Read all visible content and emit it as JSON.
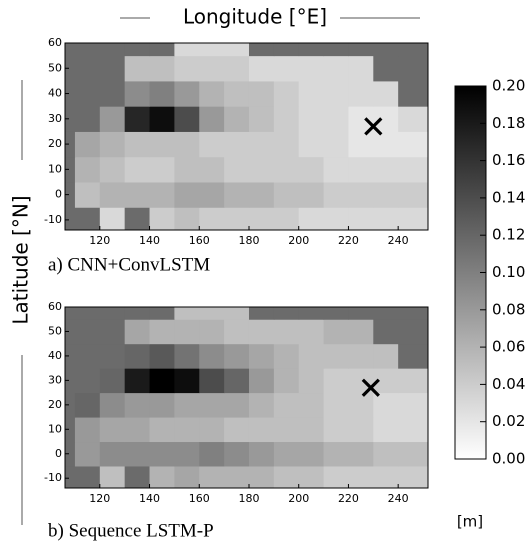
{
  "figure": {
    "xlabel": "Longitude [°E]",
    "ylabel": "Latitude [°N]",
    "colorbar": {
      "lim": [
        0,
        0.2
      ],
      "ticks": [
        {
          "value": 0,
          "label": "0.00"
        },
        {
          "value": 0.02,
          "label": "0.02"
        },
        {
          "value": 0.04,
          "label": "0.04"
        },
        {
          "value": 0.06,
          "label": "0.06"
        },
        {
          "value": 0.08,
          "label": "0.08"
        },
        {
          "value": 0.1,
          "label": "0.10"
        },
        {
          "value": 0.12,
          "label": "0.12"
        },
        {
          "value": 0.14,
          "label": "0.14"
        },
        {
          "value": 0.16,
          "label": "0.16"
        },
        {
          "value": 0.18,
          "label": "0.18"
        },
        {
          "value": 0.2,
          "label": "0.20"
        }
      ],
      "label": "[m]"
    }
  },
  "chart_data": [
    {
      "type": "heatmap",
      "title": "a) CNN+ConvLSTM",
      "xbins": [
        106,
        110,
        120,
        130,
        140,
        150,
        160,
        170,
        180,
        190,
        200,
        210,
        220,
        230,
        240,
        252
      ],
      "ybins": [
        -14,
        -5,
        5,
        15,
        25,
        35,
        45,
        55,
        60
      ],
      "xlim": [
        106,
        252
      ],
      "ylim": [
        -14,
        60
      ],
      "xticks": [
        120,
        140,
        160,
        180,
        200,
        220,
        240
      ],
      "yticks": [
        -10,
        0,
        10,
        20,
        30,
        40,
        50,
        60
      ],
      "marker": {
        "x": 230,
        "y": 27
      },
      "z": [
        [
          null,
          null,
          0.03,
          null,
          0.04,
          0.05,
          0.04,
          0.04,
          0.04,
          0.04,
          0.03,
          0.03,
          0.03,
          0.03,
          0.03
        ],
        [
          null,
          0.05,
          0.06,
          0.06,
          0.06,
          0.07,
          0.07,
          0.06,
          0.06,
          0.05,
          0.05,
          0.04,
          0.04,
          0.04,
          0.04
        ],
        [
          null,
          0.06,
          0.05,
          0.04,
          0.04,
          0.05,
          0.05,
          0.04,
          0.04,
          0.04,
          0.04,
          0.03,
          0.03,
          0.03,
          0.03
        ],
        [
          null,
          0.07,
          0.06,
          0.05,
          0.05,
          0.05,
          0.04,
          0.04,
          0.04,
          0.04,
          0.03,
          0.03,
          0.02,
          0.02,
          0.02
        ],
        [
          null,
          null,
          0.08,
          0.17,
          0.19,
          0.14,
          0.08,
          0.06,
          0.05,
          0.04,
          0.03,
          0.03,
          0.02,
          0.02,
          0.03
        ],
        [
          null,
          null,
          null,
          0.09,
          0.1,
          0.08,
          0.06,
          0.05,
          0.05,
          0.04,
          0.03,
          0.03,
          0.03,
          0.03,
          null
        ],
        [
          null,
          null,
          null,
          0.05,
          0.05,
          0.04,
          0.04,
          0.04,
          0.03,
          0.03,
          0.03,
          0.03,
          0.03,
          null,
          null
        ],
        [
          null,
          null,
          null,
          null,
          null,
          0.03,
          0.03,
          0.03,
          null,
          null,
          null,
          null,
          null,
          null,
          null
        ]
      ]
    },
    {
      "type": "heatmap",
      "title": "b) Sequence LSTM-P",
      "xbins": [
        106,
        110,
        120,
        130,
        140,
        150,
        160,
        170,
        180,
        190,
        200,
        210,
        220,
        230,
        240,
        252
      ],
      "ybins": [
        -14,
        -5,
        5,
        15,
        25,
        35,
        45,
        55,
        60
      ],
      "xlim": [
        106,
        252
      ],
      "ylim": [
        -14,
        60
      ],
      "xticks": [
        120,
        140,
        160,
        180,
        200,
        220,
        240
      ],
      "yticks": [
        -10,
        0,
        10,
        20,
        30,
        40,
        50,
        60
      ],
      "marker": {
        "x": 229,
        "y": 27
      },
      "z": [
        [
          null,
          null,
          0.05,
          null,
          0.06,
          0.07,
          0.06,
          0.06,
          0.06,
          0.05,
          0.05,
          0.04,
          0.04,
          0.04,
          0.04
        ],
        [
          null,
          0.08,
          0.09,
          0.09,
          0.09,
          0.09,
          0.1,
          0.09,
          0.08,
          0.07,
          0.07,
          0.06,
          0.06,
          0.05,
          0.05
        ],
        [
          null,
          0.08,
          0.07,
          0.07,
          0.06,
          0.06,
          0.06,
          0.05,
          0.05,
          0.05,
          0.05,
          0.04,
          0.04,
          0.03,
          0.03
        ],
        [
          null,
          0.12,
          0.09,
          0.08,
          0.08,
          0.07,
          0.07,
          0.07,
          0.06,
          0.05,
          0.05,
          0.04,
          0.04,
          0.03,
          0.03
        ],
        [
          null,
          null,
          0.12,
          0.18,
          0.2,
          0.19,
          0.14,
          0.12,
          0.08,
          0.06,
          0.05,
          0.04,
          0.04,
          0.04,
          0.04
        ],
        [
          null,
          null,
          null,
          0.12,
          0.13,
          0.11,
          0.09,
          0.08,
          0.07,
          0.06,
          0.05,
          0.05,
          0.05,
          0.05,
          null
        ],
        [
          null,
          null,
          null,
          0.07,
          0.06,
          0.06,
          0.06,
          0.05,
          0.05,
          0.05,
          0.05,
          0.06,
          0.06,
          null,
          null
        ],
        [
          null,
          null,
          null,
          null,
          null,
          0.05,
          0.05,
          0.05,
          null,
          null,
          null,
          null,
          null,
          null,
          null
        ]
      ]
    }
  ]
}
